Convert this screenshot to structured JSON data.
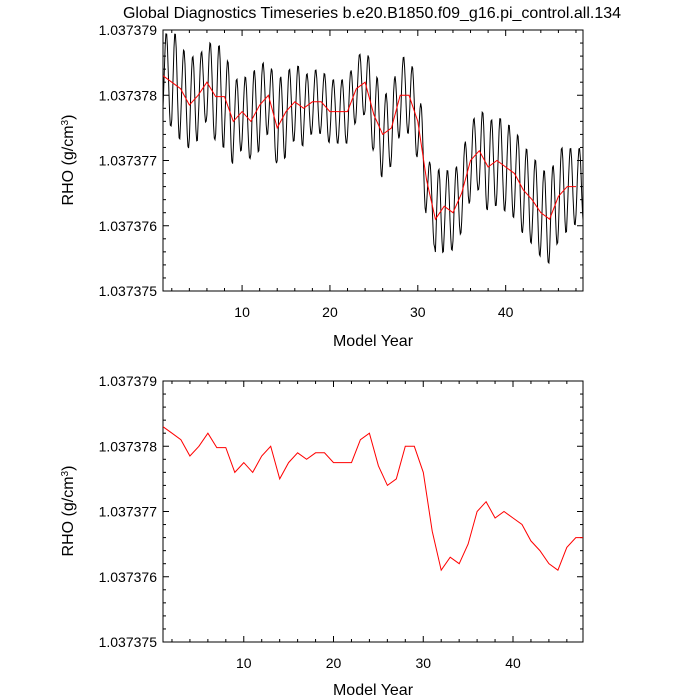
{
  "title": "Global Diagnostics Timeseries b.e20.B1850.f09_g16.pi_control.all.134",
  "colors": {
    "monthly": "#000000",
    "annual": "#ff0000"
  },
  "chart_data": [
    {
      "type": "line",
      "xlabel": "Model Year",
      "ylabel_main": "RHO (g/cm",
      "ylabel_sup": "3",
      "ylabel_close": ")",
      "xlim": [
        1,
        48.8
      ],
      "ylim": [
        1.037375,
        1.037379
      ],
      "xticks": [
        10,
        20,
        30,
        40
      ],
      "xtick_labels": [
        "10",
        "20",
        "30",
        "40"
      ],
      "yticks": [
        1.037375,
        1.037376,
        1.037377,
        1.037378,
        1.037379
      ],
      "ytick_labels": [
        "1.037375",
        "1.037376",
        "1.037377",
        "1.037378",
        "1.037379"
      ],
      "series": [
        {
          "color": "#000000",
          "seasonal_amplitude": [
            7e-07,
            8e-07,
            7e-07,
            7e-07,
            6e-07,
            7e-07,
            8e-07,
            7e-07,
            6e-07,
            6e-07,
            7e-07,
            6e-07,
            6e-07,
            7e-07,
            6e-07,
            6e-07,
            5e-07,
            5e-07,
            5e-07,
            5e-07,
            5e-07,
            5e-07,
            5e-07,
            6e-07,
            7e-07,
            6e-07,
            6e-07,
            6e-07,
            6e-07,
            6e-07,
            5e-07,
            7e-07,
            6e-07,
            6e-07,
            6e-07,
            6e-07,
            7e-07,
            7e-07,
            7e-07,
            7e-07,
            7e-07,
            7e-07,
            7e-07,
            7e-07,
            7e-07,
            7e-07,
            6e-07,
            6e-07
          ],
          "base_series": "annual means (from series 2)"
        },
        {
          "color": "#ff0000",
          "x": [
            1,
            2,
            3,
            4,
            5,
            6,
            7,
            8,
            9,
            10,
            11,
            12,
            13,
            14,
            15,
            16,
            17,
            18,
            19,
            20,
            21,
            22,
            23,
            24,
            25,
            26,
            27,
            28,
            29,
            30,
            31,
            32,
            33,
            34,
            35,
            36,
            37,
            38,
            39,
            40,
            41,
            42,
            43,
            44,
            45,
            46,
            47,
            48
          ],
          "values": [
            1.0373783,
            1.0373782,
            1.0373781,
            1.03737785,
            1.037378,
            1.0373782,
            1.03737798,
            1.03737798,
            1.0373776,
            1.03737775,
            1.0373776,
            1.03737785,
            1.037378,
            1.0373775,
            1.03737775,
            1.0373779,
            1.0373778,
            1.0373779,
            1.0373779,
            1.03737775,
            1.03737775,
            1.03737775,
            1.0373781,
            1.0373782,
            1.0373777,
            1.0373774,
            1.0373775,
            1.037378,
            1.037378,
            1.0373776,
            1.0373767,
            1.0373761,
            1.0373763,
            1.0373762,
            1.0373765,
            1.037377,
            1.03737715,
            1.0373769,
            1.037377,
            1.0373769,
            1.0373768,
            1.03737655,
            1.0373764,
            1.0373762,
            1.0373761,
            1.03737645,
            1.0373766,
            1.0373766
          ]
        }
      ]
    },
    {
      "type": "line",
      "xlabel": "Model Year",
      "ylabel_main": "RHO (g/cm",
      "ylabel_sup": "3",
      "ylabel_close": ")",
      "xlim": [
        1,
        47.8
      ],
      "ylim": [
        1.037375,
        1.037379
      ],
      "xticks": [
        10,
        20,
        30,
        40
      ],
      "xtick_labels": [
        "10",
        "20",
        "30",
        "40"
      ],
      "yticks": [
        1.037375,
        1.037376,
        1.037377,
        1.037378,
        1.037379
      ],
      "ytick_labels": [
        "1.037375",
        "1.037376",
        "1.037377",
        "1.037378",
        "1.037379"
      ],
      "series": [
        {
          "color": "#ff0000",
          "x": [
            1,
            2,
            3,
            4,
            5,
            6,
            7,
            8,
            9,
            10,
            11,
            12,
            13,
            14,
            15,
            16,
            17,
            18,
            19,
            20,
            21,
            22,
            23,
            24,
            25,
            26,
            27,
            28,
            29,
            30,
            31,
            32,
            33,
            34,
            35,
            36,
            37,
            38,
            39,
            40,
            41,
            42,
            43,
            44,
            45,
            46,
            47,
            48
          ],
          "values": [
            1.0373783,
            1.0373782,
            1.0373781,
            1.03737785,
            1.037378,
            1.0373782,
            1.03737798,
            1.03737798,
            1.0373776,
            1.03737775,
            1.0373776,
            1.03737785,
            1.037378,
            1.0373775,
            1.03737775,
            1.0373779,
            1.0373778,
            1.0373779,
            1.0373779,
            1.03737775,
            1.03737775,
            1.03737775,
            1.0373781,
            1.0373782,
            1.0373777,
            1.0373774,
            1.0373775,
            1.037378,
            1.037378,
            1.0373776,
            1.0373767,
            1.0373761,
            1.0373763,
            1.0373762,
            1.0373765,
            1.037377,
            1.03737715,
            1.0373769,
            1.037377,
            1.0373769,
            1.0373768,
            1.03737655,
            1.0373764,
            1.0373762,
            1.0373761,
            1.03737645,
            1.0373766,
            1.0373766
          ]
        }
      ]
    }
  ]
}
